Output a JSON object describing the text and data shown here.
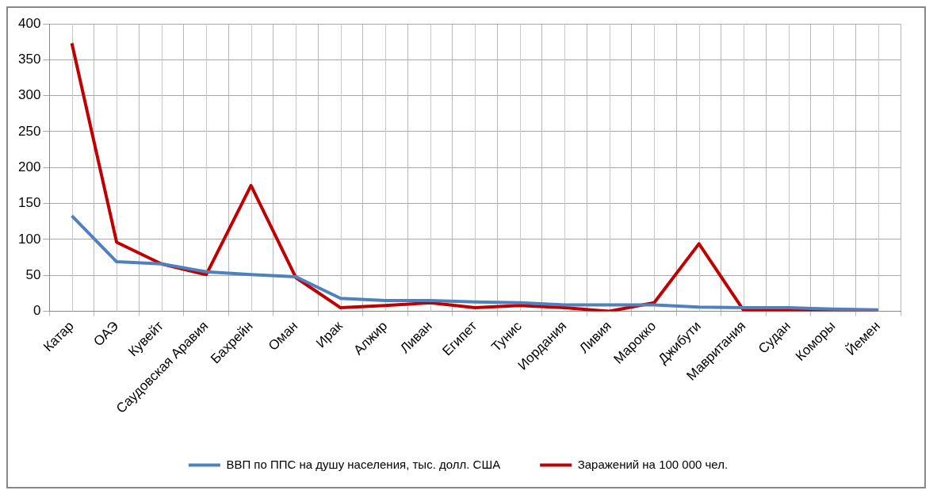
{
  "chart_data": {
    "type": "line",
    "categories": [
      "Катар",
      "ОАЭ",
      "Кувейт",
      "Саудовская Аравия",
      "Бахрейн",
      "Оман",
      "Ирак",
      "Алжир",
      "Ливан",
      "Египет",
      "Тунис",
      "Иордания",
      "Ливия",
      "Марокко",
      "Джибути",
      "Мавритания",
      "Судан",
      "Коморы",
      "Йемен"
    ],
    "series": [
      {
        "name": "ВВП по ППС на душу населения, тыс. долл. США",
        "color": "#4f81bd",
        "values": [
          133,
          69,
          66,
          55,
          51,
          48,
          18,
          15,
          15,
          13,
          12,
          9,
          9,
          9,
          6,
          5,
          5,
          3,
          2
        ]
      },
      {
        "name": "Заражений на 100 000 чел.",
        "color": "#c00000",
        "values": [
          373,
          96,
          66,
          51,
          175,
          47,
          5,
          8,
          12,
          5,
          8,
          5,
          0,
          12,
          94,
          1,
          1,
          1,
          1
        ]
      }
    ],
    "ylim": [
      0,
      400
    ],
    "yticks": [
      0,
      50,
      100,
      150,
      200,
      250,
      300,
      350,
      400
    ],
    "grid": true,
    "legend": "bottom",
    "marker": "none",
    "line_style": "solid"
  }
}
